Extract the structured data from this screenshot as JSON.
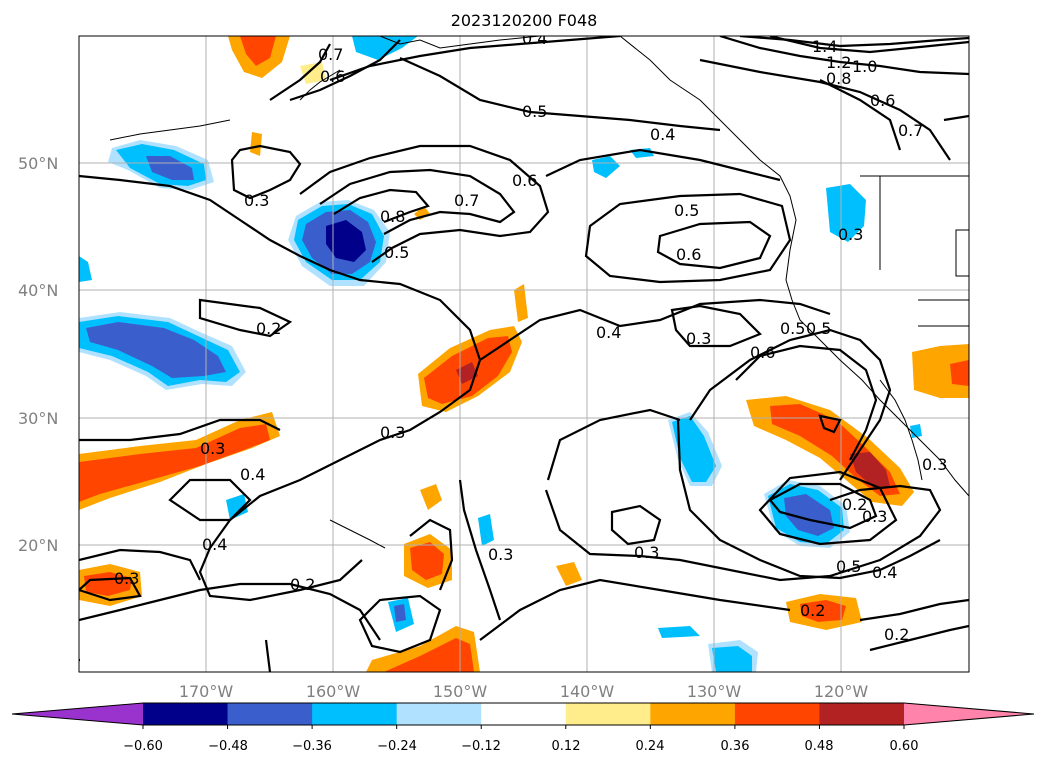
{
  "title": "2023120200 F048",
  "map": {
    "lat_range": [
      10,
      60
    ],
    "lon_range": [
      -180,
      -110
    ],
    "lat_labels": [
      {
        "lat": 50,
        "text": "50°N"
      },
      {
        "lat": 40,
        "text": "40°N"
      },
      {
        "lat": 30,
        "text": "30°N"
      },
      {
        "lat": 20,
        "text": "20°N"
      }
    ],
    "lon_labels": [
      {
        "lon": -170,
        "text": "170°W"
      },
      {
        "lon": -160,
        "text": "160°W"
      },
      {
        "lon": -150,
        "text": "150°W"
      },
      {
        "lon": -140,
        "text": "140°W"
      },
      {
        "lon": -130,
        "text": "130°W"
      },
      {
        "lon": -120,
        "text": "120°W"
      }
    ],
    "grid": true
  },
  "colorbar": {
    "ticks": [
      "−0.60",
      "−0.48",
      "−0.36",
      "−0.24",
      "−0.12",
      "0.12",
      "0.24",
      "0.36",
      "0.48",
      "0.60"
    ],
    "colors": [
      "#9a32cd",
      "#00008b",
      "#3a5fcd",
      "#00bfff",
      "#b0e2ff",
      "#ffffff",
      "#ffec8b",
      "#ffa500",
      "#ff4500",
      "#b22222",
      "#ff83aa"
    ],
    "extend": "both"
  },
  "contour_labels": [
    "0.7",
    "0.6",
    "0.5",
    "0.4",
    "0.5",
    "0.4",
    "1.4",
    "1.2",
    "1.0",
    "0.8",
    "0.6",
    "0.7",
    "0.3",
    "0.8",
    "0.7",
    "0.6",
    "0.5",
    "0.5",
    "0.6",
    "0.3",
    "0.2",
    "0.4",
    "0.3",
    "0.5",
    "0.6",
    "0.3",
    "0.3",
    "0.4",
    "0.4",
    "0.2",
    "0.3",
    "0.3",
    "0.3",
    "0.2",
    "0.5",
    "0.4",
    "0.3",
    "0.2",
    "0.2",
    "0.3"
  ]
}
